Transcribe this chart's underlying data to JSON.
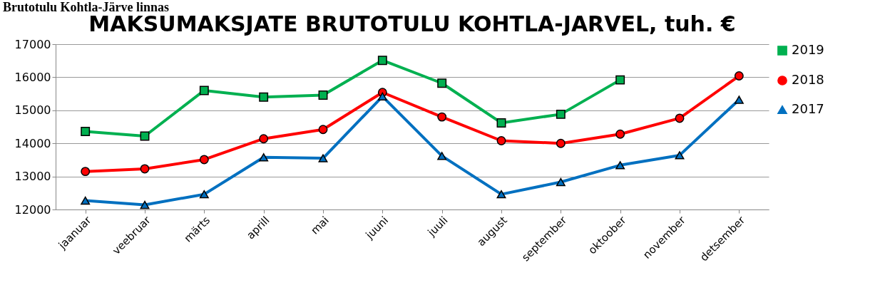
{
  "chart_data": {
    "type": "line",
    "title": "MAKSUMAKSJATE BRUTOTULU KOHTLA-JÄRVEL, tuh. €",
    "annotations": [
      "Brutotulu Kohtla-Järve linnas"
    ],
    "categories": [
      "jaanuar",
      "veebruar",
      "märts",
      "aprill",
      "mai",
      "juuni",
      "juuli",
      "august",
      "september",
      "oktoober",
      "november",
      "detsember"
    ],
    "series": [
      {
        "name": "2019",
        "color": "#00b050",
        "marker": "square",
        "values": [
          14360,
          14220,
          15600,
          15400,
          15460,
          16510,
          15820,
          14620,
          14880,
          15920,
          null,
          null
        ]
      },
      {
        "name": "2018",
        "color": "#ff0000",
        "marker": "circle",
        "values": [
          13150,
          13230,
          13510,
          14140,
          14420,
          15540,
          14800,
          14080,
          14000,
          14280,
          14760,
          16040
        ]
      },
      {
        "name": "2017",
        "color": "#0070c0",
        "marker": "triangle",
        "values": [
          12270,
          12140,
          12460,
          13580,
          13550,
          15420,
          13620,
          12460,
          12830,
          13340,
          13640,
          15320
        ]
      }
    ],
    "ylim": [
      12000,
      17000
    ],
    "yticks": [
      12000,
      13000,
      14000,
      15000,
      16000,
      17000
    ],
    "grid": "y",
    "legend": "right",
    "line_style": "solid"
  }
}
